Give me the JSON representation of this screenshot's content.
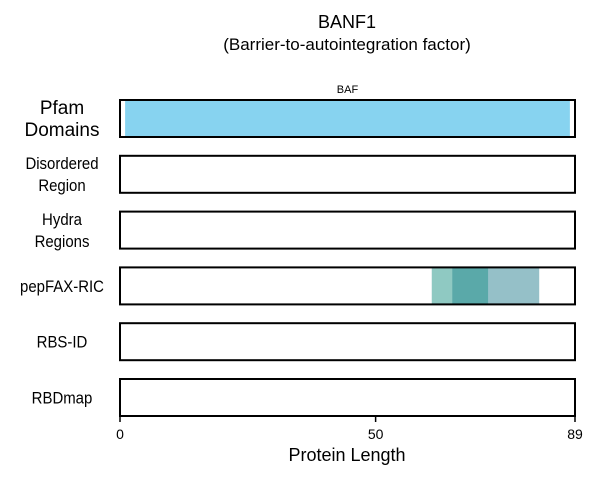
{
  "chart_data": {
    "type": "domain-track",
    "title": "BANF1",
    "subtitle": "(Barrier-to-autointegration factor)",
    "xlabel": "Protein Length",
    "xlim": [
      0,
      89
    ],
    "xticks": [
      0,
      50,
      89
    ],
    "tracks": [
      {
        "label_lines": [
          "Pfam",
          "Domains"
        ],
        "features": [
          {
            "name": "BAF",
            "start": 1,
            "end": 88,
            "color": "#87d3f0",
            "show_label": true
          }
        ]
      },
      {
        "label_lines": [
          "Disordered",
          "Region"
        ],
        "features": []
      },
      {
        "label_lines": [
          "Hydra",
          "Regions"
        ],
        "features": []
      },
      {
        "label_lines": [
          "pepFAX-RIC"
        ],
        "features": [
          {
            "name": "",
            "start": 61,
            "end": 82,
            "color": "#95c0c8",
            "show_label": false
          },
          {
            "name": "",
            "start": 61,
            "end": 69,
            "color": "#8fc9c2",
            "show_label": false
          },
          {
            "name": "",
            "start": 65,
            "end": 72,
            "color": "#5aa9a9",
            "show_label": false
          }
        ]
      },
      {
        "label_lines": [
          "RBS-ID"
        ],
        "features": []
      },
      {
        "label_lines": [
          "RBDmap"
        ],
        "features": []
      }
    ]
  }
}
